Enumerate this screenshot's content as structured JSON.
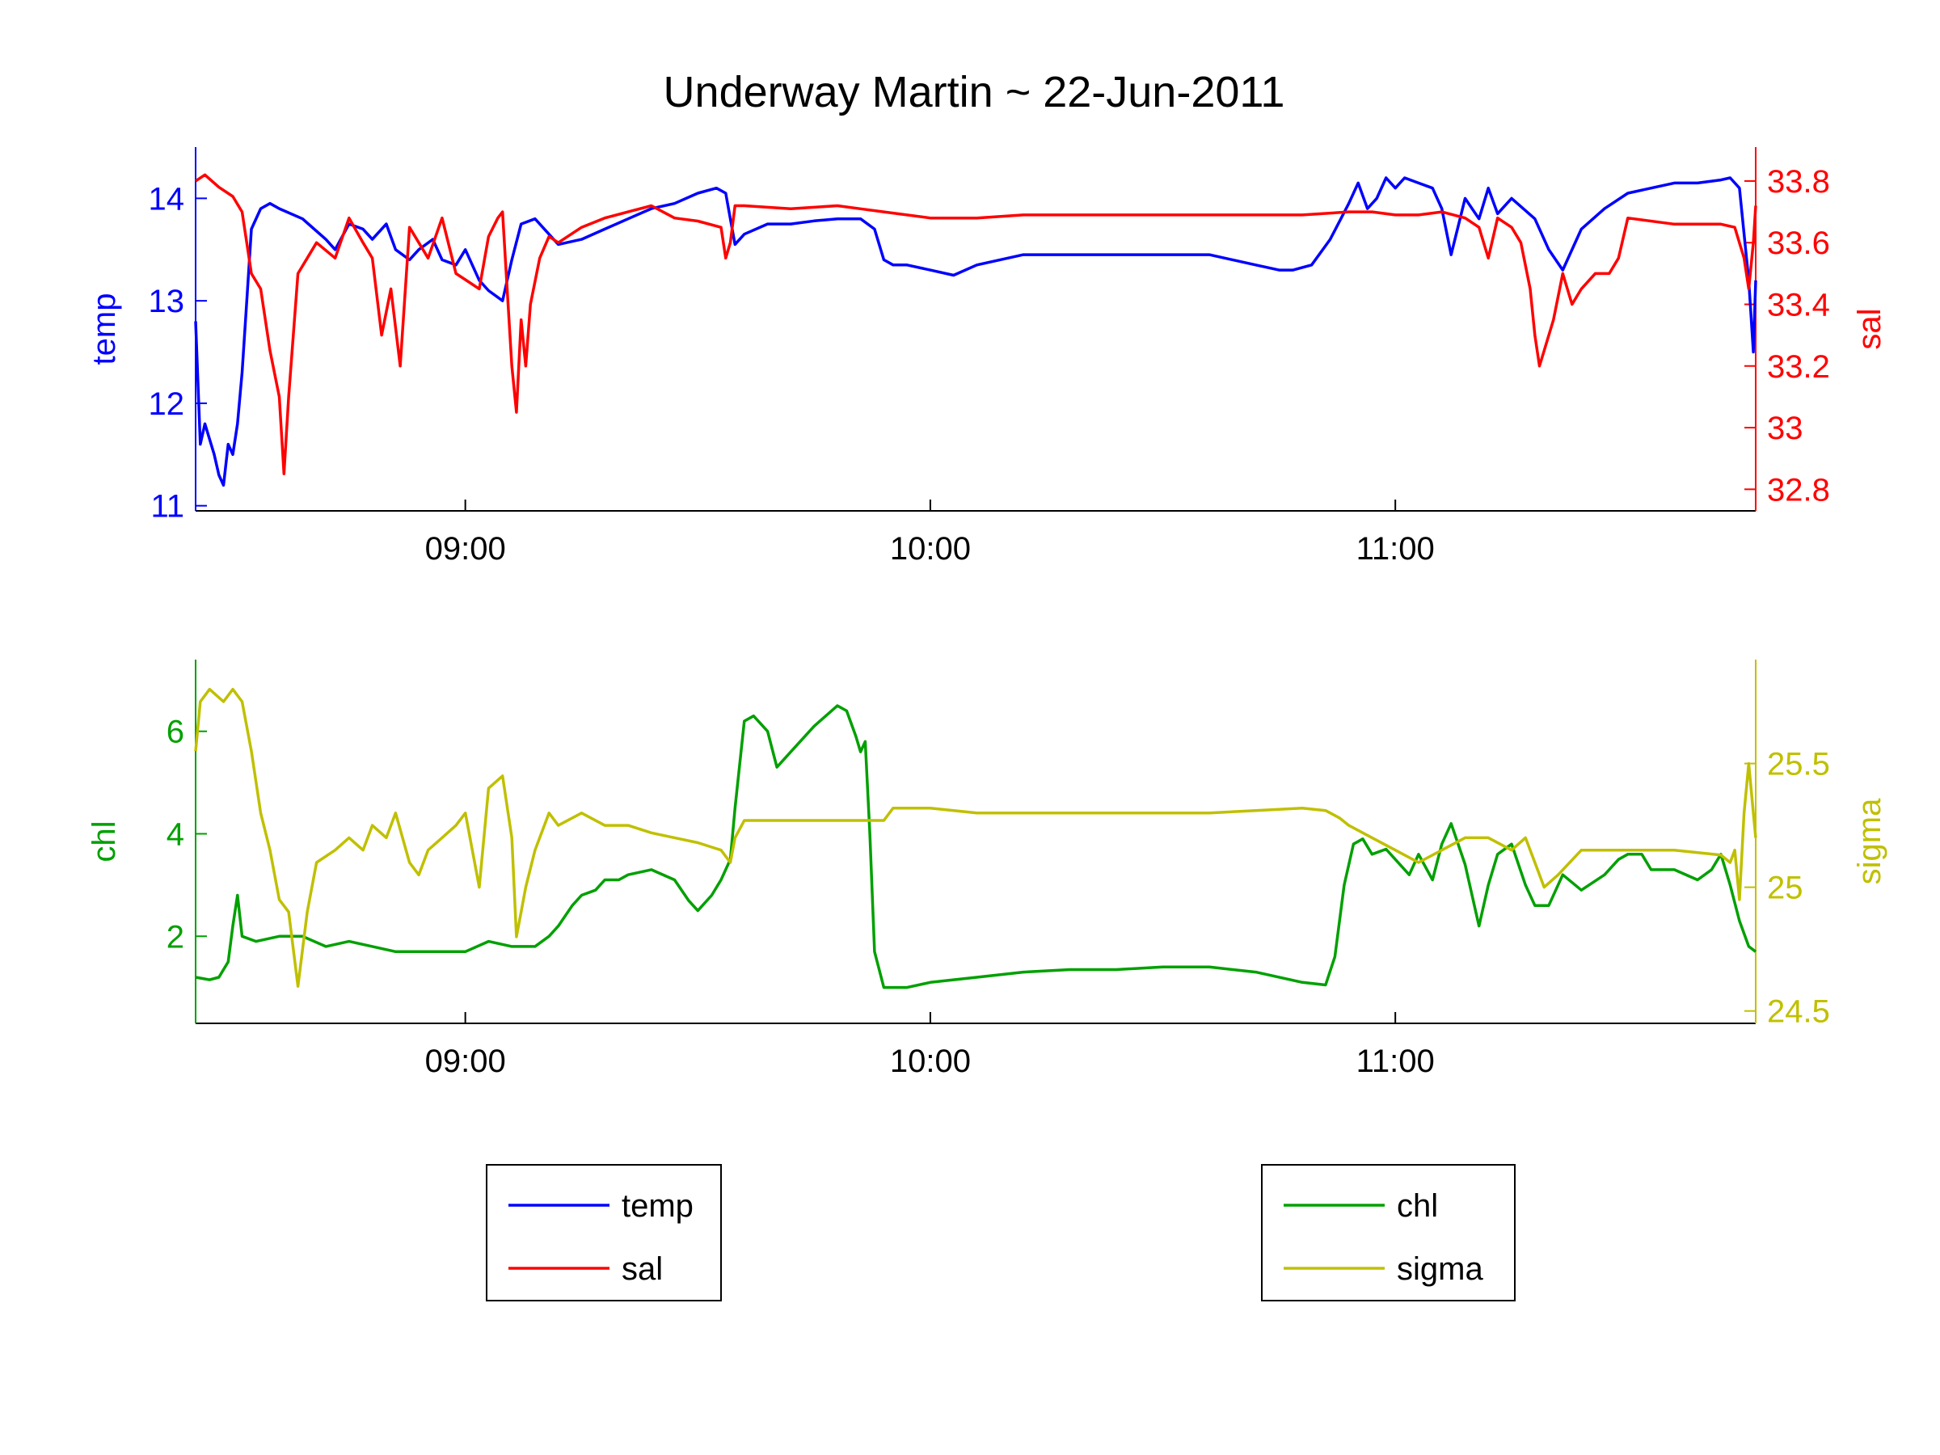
{
  "chart_data": {
    "title": "Underway Martin ~ 22-Jun-2011",
    "panels": [
      {
        "type": "line",
        "x_unit": "time of day (hours)",
        "xlim": [
          8.42,
          11.775
        ],
        "xticks": [
          {
            "value": 9,
            "label": "09:00"
          },
          {
            "value": 10,
            "label": "10:00"
          },
          {
            "value": 11,
            "label": "11:00"
          }
        ],
        "axes": [
          {
            "side": "left",
            "label": "temp",
            "color": "#0000ff",
            "ylim": [
              10.95,
              14.5
            ],
            "ticks": [
              {
                "value": 11,
                "label": "11"
              },
              {
                "value": 12,
                "label": "12"
              },
              {
                "value": 13,
                "label": "13"
              },
              {
                "value": 14,
                "label": "14"
              }
            ]
          },
          {
            "side": "right",
            "label": "sal",
            "color": "#ff0000",
            "ylim": [
              32.73,
              33.91
            ],
            "ticks": [
              {
                "value": 32.8,
                "label": "32.8"
              },
              {
                "value": 33.0,
                "label": "33"
              },
              {
                "value": 33.2,
                "label": "33.2"
              },
              {
                "value": 33.4,
                "label": "33.4"
              },
              {
                "value": 33.6,
                "label": "33.6"
              },
              {
                "value": 33.8,
                "label": "33.8"
              }
            ]
          }
        ],
        "series": [
          {
            "name": "temp",
            "axis": "left",
            "color": "#0000ff",
            "x": [
              8.42,
              8.43,
              8.44,
              8.46,
              8.47,
              8.48,
              8.49,
              8.5,
              8.51,
              8.52,
              8.53,
              8.54,
              8.56,
              8.58,
              8.6,
              8.65,
              8.7,
              8.72,
              8.75,
              8.78,
              8.8,
              8.83,
              8.85,
              8.88,
              8.9,
              8.93,
              8.95,
              8.98,
              9.0,
              9.03,
              9.05,
              9.08,
              9.1,
              9.12,
              9.15,
              9.2,
              9.25,
              9.3,
              9.35,
              9.4,
              9.45,
              9.5,
              9.54,
              9.56,
              9.57,
              9.58,
              9.6,
              9.65,
              9.7,
              9.75,
              9.8,
              9.85,
              9.88,
              9.9,
              9.92,
              9.95,
              10.0,
              10.05,
              10.1,
              10.15,
              10.2,
              10.3,
              10.4,
              10.5,
              10.6,
              10.7,
              10.75,
              10.78,
              10.82,
              10.86,
              10.9,
              10.92,
              10.94,
              10.96,
              10.98,
              11.0,
              11.02,
              11.05,
              11.08,
              11.1,
              11.12,
              11.15,
              11.18,
              11.2,
              11.22,
              11.25,
              11.3,
              11.33,
              11.36,
              11.4,
              11.45,
              11.5,
              11.55,
              11.6,
              11.65,
              11.7,
              11.72,
              11.74,
              11.76,
              11.77,
              11.775
            ],
            "values": [
              12.8,
              11.6,
              11.8,
              11.5,
              11.3,
              11.2,
              11.6,
              11.5,
              11.8,
              12.3,
              13.0,
              13.7,
              13.9,
              13.95,
              13.9,
              13.8,
              13.6,
              13.5,
              13.75,
              13.7,
              13.6,
              13.75,
              13.5,
              13.4,
              13.5,
              13.6,
              13.4,
              13.35,
              13.5,
              13.2,
              13.1,
              13.0,
              13.4,
              13.75,
              13.8,
              13.55,
              13.6,
              13.7,
              13.8,
              13.9,
              13.95,
              14.05,
              14.1,
              14.05,
              13.8,
              13.55,
              13.65,
              13.75,
              13.75,
              13.78,
              13.8,
              13.8,
              13.7,
              13.4,
              13.35,
              13.35,
              13.3,
              13.25,
              13.35,
              13.4,
              13.45,
              13.45,
              13.45,
              13.45,
              13.45,
              13.35,
              13.3,
              13.3,
              13.35,
              13.6,
              13.95,
              14.15,
              13.9,
              14.0,
              14.2,
              14.1,
              14.2,
              14.15,
              14.1,
              13.9,
              13.45,
              14.0,
              13.8,
              14.1,
              13.85,
              14.0,
              13.8,
              13.5,
              13.3,
              13.7,
              13.9,
              14.05,
              14.1,
              14.15,
              14.15,
              14.18,
              14.2,
              14.1,
              13.2,
              12.5,
              13.2
            ]
          },
          {
            "name": "sal",
            "axis": "right",
            "color": "#ff0000",
            "x": [
              8.42,
              8.44,
              8.47,
              8.5,
              8.52,
              8.54,
              8.56,
              8.58,
              8.6,
              8.61,
              8.62,
              8.64,
              8.66,
              8.68,
              8.72,
              8.75,
              8.78,
              8.8,
              8.82,
              8.84,
              8.86,
              8.88,
              8.9,
              8.92,
              8.95,
              8.98,
              9.0,
              9.03,
              9.05,
              9.07,
              9.08,
              9.09,
              9.1,
              9.11,
              9.12,
              9.13,
              9.14,
              9.16,
              9.18,
              9.2,
              9.25,
              9.3,
              9.35,
              9.4,
              9.45,
              9.5,
              9.55,
              9.56,
              9.57,
              9.58,
              9.6,
              9.7,
              9.8,
              9.85,
              9.9,
              10.0,
              10.1,
              10.2,
              10.3,
              10.4,
              10.5,
              10.6,
              10.7,
              10.8,
              10.9,
              10.95,
              11.0,
              11.05,
              11.1,
              11.15,
              11.18,
              11.2,
              11.22,
              11.25,
              11.27,
              11.29,
              11.3,
              11.31,
              11.32,
              11.34,
              11.36,
              11.38,
              11.4,
              11.43,
              11.46,
              11.48,
              11.5,
              11.6,
              11.7,
              11.73,
              11.75,
              11.76,
              11.77,
              11.775
            ],
            "values": [
              33.8,
              33.82,
              33.78,
              33.75,
              33.7,
              33.5,
              33.45,
              33.25,
              33.1,
              32.85,
              33.1,
              33.5,
              33.55,
              33.6,
              33.55,
              33.68,
              33.6,
              33.55,
              33.3,
              33.45,
              33.2,
              33.65,
              33.6,
              33.55,
              33.68,
              33.5,
              33.48,
              33.45,
              33.62,
              33.68,
              33.7,
              33.45,
              33.2,
              33.05,
              33.35,
              33.2,
              33.4,
              33.55,
              33.62,
              33.6,
              33.65,
              33.68,
              33.7,
              33.72,
              33.68,
              33.67,
              33.65,
              33.55,
              33.6,
              33.72,
              33.72,
              33.71,
              33.72,
              33.71,
              33.7,
              33.68,
              33.68,
              33.69,
              33.69,
              33.69,
              33.69,
              33.69,
              33.69,
              33.69,
              33.7,
              33.7,
              33.69,
              33.69,
              33.7,
              33.68,
              33.65,
              33.55,
              33.68,
              33.65,
              33.6,
              33.45,
              33.3,
              33.2,
              33.25,
              33.35,
              33.5,
              33.4,
              33.45,
              33.5,
              33.5,
              33.55,
              33.68,
              33.66,
              33.66,
              33.65,
              33.55,
              33.45,
              33.6,
              33.72
            ]
          }
        ]
      },
      {
        "type": "line",
        "x_unit": "time of day (hours)",
        "xlim": [
          8.42,
          11.775
        ],
        "xticks": [
          {
            "value": 9,
            "label": "09:00"
          },
          {
            "value": 10,
            "label": "10:00"
          },
          {
            "value": 11,
            "label": "11:00"
          }
        ],
        "axes": [
          {
            "side": "left",
            "label": "chl",
            "color": "#00a000",
            "ylim": [
              0.3,
              7.4
            ],
            "ticks": [
              {
                "value": 2,
                "label": "2"
              },
              {
                "value": 4,
                "label": "4"
              },
              {
                "value": 6,
                "label": "6"
              }
            ]
          },
          {
            "side": "right",
            "label": "sigma",
            "color": "#c0c000",
            "ylim": [
              24.45,
              25.92
            ],
            "ticks": [
              {
                "value": 24.5,
                "label": "24.5"
              },
              {
                "value": 25.0,
                "label": "25"
              },
              {
                "value": 25.5,
                "label": "25.5"
              }
            ]
          }
        ],
        "series": [
          {
            "name": "chl",
            "axis": "left",
            "color": "#00a000",
            "x": [
              8.42,
              8.45,
              8.47,
              8.49,
              8.5,
              8.51,
              8.52,
              8.55,
              8.6,
              8.65,
              8.7,
              8.75,
              8.8,
              8.85,
              8.9,
              8.95,
              9.0,
              9.05,
              9.1,
              9.15,
              9.18,
              9.2,
              9.23,
              9.25,
              9.28,
              9.3,
              9.33,
              9.35,
              9.4,
              9.45,
              9.48,
              9.5,
              9.53,
              9.55,
              9.57,
              9.58,
              9.6,
              9.62,
              9.65,
              9.67,
              9.7,
              9.75,
              9.8,
              9.82,
              9.84,
              9.85,
              9.86,
              9.87,
              9.88,
              9.9,
              9.95,
              10.0,
              10.1,
              10.2,
              10.3,
              10.4,
              10.5,
              10.6,
              10.7,
              10.8,
              10.85,
              10.87,
              10.89,
              10.91,
              10.93,
              10.95,
              10.98,
              11.0,
              11.03,
              11.05,
              11.08,
              11.1,
              11.12,
              11.15,
              11.18,
              11.2,
              11.22,
              11.25,
              11.28,
              11.3,
              11.33,
              11.36,
              11.4,
              11.45,
              11.48,
              11.5,
              11.53,
              11.55,
              11.6,
              11.65,
              11.68,
              11.7,
              11.72,
              11.74,
              11.76,
              11.775
            ],
            "values": [
              1.2,
              1.15,
              1.2,
              1.5,
              2.2,
              2.8,
              2.0,
              1.9,
              2.0,
              2.0,
              1.8,
              1.9,
              1.8,
              1.7,
              1.7,
              1.7,
              1.7,
              1.9,
              1.8,
              1.8,
              2.0,
              2.2,
              2.6,
              2.8,
              2.9,
              3.1,
              3.1,
              3.2,
              3.3,
              3.1,
              2.7,
              2.5,
              2.8,
              3.1,
              3.5,
              4.5,
              6.2,
              6.3,
              6.0,
              5.3,
              5.6,
              6.1,
              6.5,
              6.4,
              5.9,
              5.6,
              5.8,
              4.0,
              1.7,
              1.0,
              1.0,
              1.1,
              1.2,
              1.3,
              1.35,
              1.35,
              1.4,
              1.4,
              1.3,
              1.1,
              1.05,
              1.6,
              3.0,
              3.8,
              3.9,
              3.6,
              3.7,
              3.5,
              3.2,
              3.6,
              3.1,
              3.8,
              4.2,
              3.4,
              2.2,
              3.0,
              3.6,
              3.8,
              3.0,
              2.6,
              2.6,
              3.2,
              2.9,
              3.2,
              3.5,
              3.6,
              3.6,
              3.3,
              3.3,
              3.1,
              3.3,
              3.6,
              3.0,
              2.3,
              1.8,
              1.7
            ]
          },
          {
            "name": "sigma",
            "axis": "right",
            "color": "#c0c000",
            "x": [
              8.42,
              8.43,
              8.45,
              8.48,
              8.5,
              8.52,
              8.54,
              8.56,
              8.58,
              8.6,
              8.62,
              8.64,
              8.66,
              8.68,
              8.72,
              8.75,
              8.78,
              8.8,
              8.83,
              8.85,
              8.88,
              8.9,
              8.92,
              8.95,
              8.98,
              9.0,
              9.03,
              9.05,
              9.08,
              9.1,
              9.11,
              9.12,
              9.13,
              9.15,
              9.18,
              9.2,
              9.25,
              9.3,
              9.35,
              9.4,
              9.45,
              9.5,
              9.55,
              9.57,
              9.58,
              9.6,
              9.7,
              9.8,
              9.85,
              9.9,
              9.92,
              9.95,
              10.0,
              10.05,
              10.1,
              10.2,
              10.3,
              10.4,
              10.5,
              10.6,
              10.7,
              10.8,
              10.85,
              10.88,
              10.9,
              10.95,
              11.0,
              11.05,
              11.1,
              11.15,
              11.2,
              11.25,
              11.28,
              11.3,
              11.32,
              11.35,
              11.4,
              11.45,
              11.5,
              11.6,
              11.7,
              11.72,
              11.73,
              11.74,
              11.75,
              11.76,
              11.77,
              11.775
            ],
            "values": [
              25.55,
              25.75,
              25.8,
              25.75,
              25.8,
              25.75,
              25.55,
              25.3,
              25.15,
              24.95,
              24.9,
              24.6,
              24.9,
              25.1,
              25.15,
              25.2,
              25.15,
              25.25,
              25.2,
              25.3,
              25.1,
              25.05,
              25.15,
              25.2,
              25.25,
              25.3,
              25.0,
              25.4,
              25.45,
              25.2,
              24.8,
              24.9,
              25.0,
              25.15,
              25.3,
              25.25,
              25.3,
              25.25,
              25.25,
              25.22,
              25.2,
              25.18,
              25.15,
              25.1,
              25.2,
              25.27,
              25.27,
              25.27,
              25.27,
              25.27,
              25.32,
              25.32,
              25.32,
              25.31,
              25.3,
              25.3,
              25.3,
              25.3,
              25.3,
              25.3,
              25.31,
              25.32,
              25.31,
              25.28,
              25.25,
              25.2,
              25.15,
              25.1,
              25.15,
              25.2,
              25.2,
              25.15,
              25.2,
              25.1,
              25.0,
              25.05,
              25.15,
              25.15,
              25.15,
              25.15,
              25.13,
              25.1,
              25.15,
              24.95,
              25.3,
              25.5,
              25.3,
              25.2
            ]
          }
        ]
      }
    ],
    "legends": [
      {
        "entries": [
          {
            "label": "temp",
            "color": "#0000ff"
          },
          {
            "label": "sal",
            "color": "#ff0000"
          }
        ]
      },
      {
        "entries": [
          {
            "label": "chl",
            "color": "#00a000"
          },
          {
            "label": "sigma",
            "color": "#c0c000"
          }
        ]
      }
    ]
  }
}
